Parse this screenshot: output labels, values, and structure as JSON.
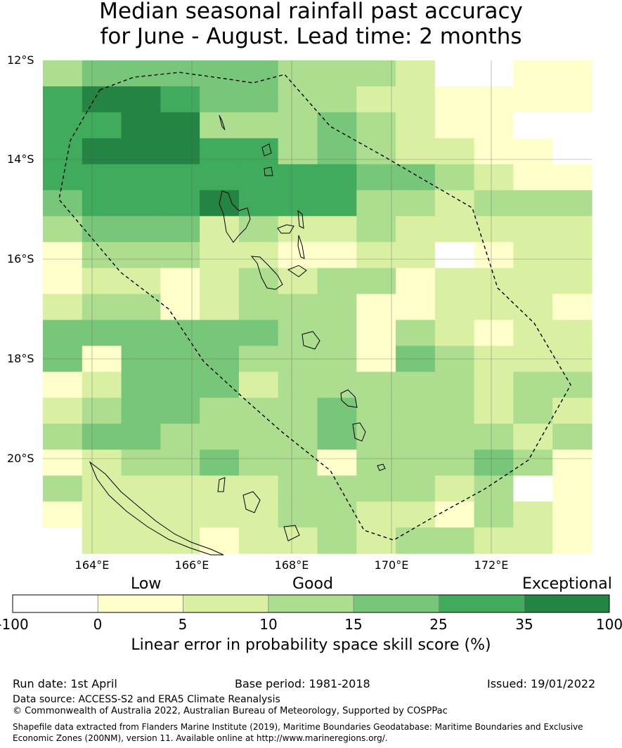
{
  "title_line1": "Median seasonal rainfall past accuracy",
  "title_line2": "for June - August. Lead time: 2 months",
  "map": {
    "lat_labels": [
      "12°S",
      "14°S",
      "16°S",
      "18°S",
      "20°S"
    ],
    "lon_labels": [
      "164°E",
      "166°E",
      "168°E",
      "170°E",
      "172°E"
    ],
    "grid_rows": [
      "34444433320011",
      "56654433221111",
      "55663334321100",
      "56665534322110",
      "55555555443211",
      "45556555332333",
      "34442322322222",
      "13332211220122",
      "12212323312222",
      "23312333112221",
      "44444433132122",
      "41444333143222",
      "12444233333233",
      "23443334333232",
      "34433334333323",
      "12334331333431",
      "32222233332301",
      "12222233221321",
      "02221223233221"
    ]
  },
  "colorbar": {
    "categories": [
      "Low",
      "Good",
      "Exceptional"
    ],
    "ticks": [
      "-100",
      "0",
      "5",
      "10",
      "15",
      "25",
      "35",
      "100"
    ],
    "colors": [
      "#ffffff",
      "#ffffcc",
      "#d9f0a3",
      "#addd8e",
      "#78c679",
      "#41ab5d",
      "#238443"
    ],
    "title": "Linear error in probability space skill score (%)"
  },
  "footer": {
    "run_date": "Run date: 1st April",
    "base_period": "Base period: 1981-2018",
    "issued": "Issued: 19/01/2022",
    "data_source": "Data source: ACCESS-S2 and ERA5 Climate Reanalysis",
    "copyright": "© Commonwealth of Australia 2022, Australian Bureau of Meteorology, Supported by COSPPac",
    "shapefile": "Shapefile data extracted from Flanders Marine Institute (2019), Maritime Boundaries Geodatabase: Maritime Boundaries and Exclusive Economic Zones (200NM), version 11. Available online at http://www.marineregions.org/."
  }
}
